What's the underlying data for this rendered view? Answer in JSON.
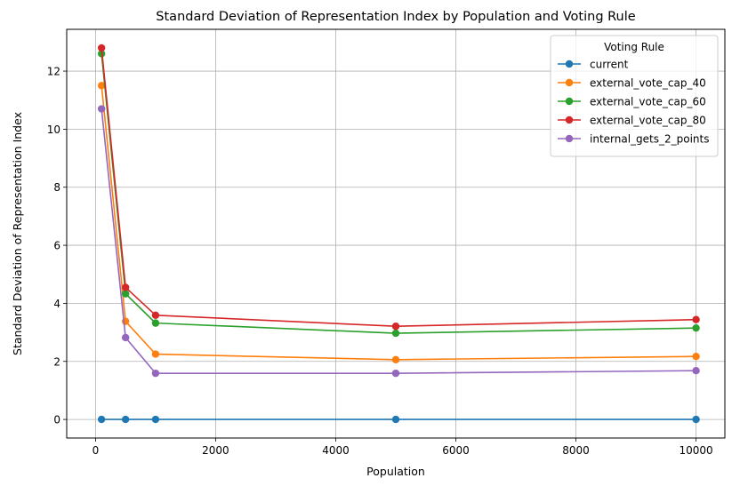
{
  "chart_data": {
    "type": "line",
    "title": "Standard Deviation of Representation Index by Population and Voting Rule",
    "xlabel": "Population",
    "ylabel": "Standard Deviation of Representation Index",
    "xlim": [
      -480,
      10480
    ],
    "ylim": [
      -0.64,
      13.44
    ],
    "x_ticks": [
      0,
      2000,
      4000,
      6000,
      8000,
      10000
    ],
    "x_tick_labels": [
      "0",
      "2000",
      "4000",
      "6000",
      "8000",
      "10000"
    ],
    "y_ticks": [
      0,
      2,
      4,
      6,
      8,
      10,
      12
    ],
    "y_tick_labels": [
      "0",
      "2",
      "4",
      "6",
      "8",
      "10",
      "12"
    ],
    "grid": true,
    "legend": {
      "title": "Voting Rule",
      "placement": "top-right"
    },
    "x": [
      100,
      500,
      1000,
      5000,
      10000
    ],
    "series": [
      {
        "name": "current",
        "color": "#1f77b4",
        "values": [
          0,
          0,
          0,
          0,
          0
        ]
      },
      {
        "name": "external_vote_cap_40",
        "color": "#ff7f0e",
        "values": [
          11.5,
          3.38,
          2.25,
          2.06,
          2.17
        ]
      },
      {
        "name": "external_vote_cap_60",
        "color": "#2ca02c",
        "values": [
          12.6,
          4.33,
          3.32,
          2.97,
          3.15
        ]
      },
      {
        "name": "external_vote_cap_80",
        "color": "#d62728",
        "values": [
          12.8,
          4.55,
          3.59,
          3.21,
          3.44
        ]
      },
      {
        "name": "internal_gets_2_points",
        "color": "#9467bd",
        "values": [
          10.7,
          2.82,
          1.59,
          1.59,
          1.68
        ]
      }
    ]
  }
}
